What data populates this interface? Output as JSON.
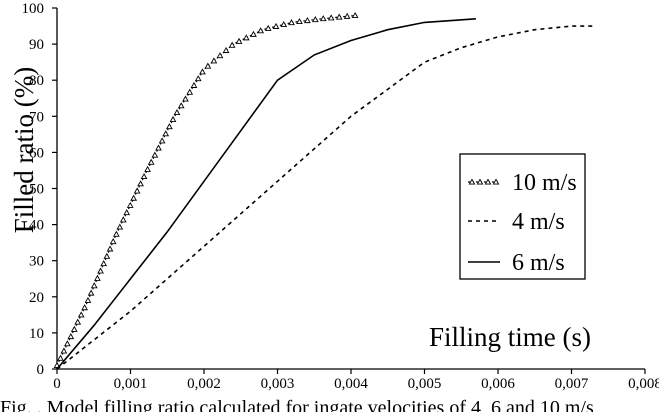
{
  "chart_data": {
    "type": "line",
    "title": "",
    "xlabel": "Filling time (s)",
    "ylabel": "Filled ratio (%)",
    "xlim": [
      0,
      0.008
    ],
    "ylim": [
      0,
      100
    ],
    "x_ticks": [
      0,
      0.001,
      0.002,
      0.003,
      0.004,
      0.005,
      0.006,
      0.007,
      0.008
    ],
    "x_tick_labels": [
      "0",
      "0,001",
      "0,002",
      "0,003",
      "0,004",
      "0,005",
      "0,006",
      "0,007",
      "0,008"
    ],
    "y_ticks": [
      0,
      10,
      20,
      30,
      40,
      50,
      60,
      70,
      80,
      90,
      100
    ],
    "y_tick_labels": [
      "0",
      "10",
      "20",
      "30",
      "40",
      "50",
      "60",
      "70",
      "80",
      "90",
      "100"
    ],
    "grid": false,
    "legend_position": "right",
    "series": [
      {
        "name": "10 m/s",
        "style": "dotted-triangle-markers",
        "x": [
          0,
          0.0004,
          0.0008,
          0.0012,
          0.0016,
          0.002,
          0.0024,
          0.0028,
          0.0032,
          0.0036,
          0.0041
        ],
        "y": [
          1,
          18,
          37,
          54,
          70,
          83,
          90,
          94,
          96,
          97,
          98
        ]
      },
      {
        "name": "4 m/s",
        "style": "dashed",
        "x": [
          0,
          0.001,
          0.002,
          0.003,
          0.004,
          0.005,
          0.0055,
          0.006,
          0.0065,
          0.007,
          0.0073
        ],
        "y": [
          0,
          16,
          34,
          52,
          70,
          85,
          89,
          92,
          94,
          95,
          95
        ]
      },
      {
        "name": "6 m/s",
        "style": "solid",
        "x": [
          0,
          0.0005,
          0.001,
          0.0015,
          0.002,
          0.0025,
          0.003,
          0.0035,
          0.004,
          0.0045,
          0.005,
          0.0057
        ],
        "y": [
          0,
          12,
          25,
          38,
          52,
          66,
          80,
          87,
          91,
          94,
          96,
          97
        ]
      }
    ]
  },
  "caption": {
    "text": "Fig.  . Model filling ratio calculated for ingate velocities of 4, 6 and 10 m/s"
  }
}
